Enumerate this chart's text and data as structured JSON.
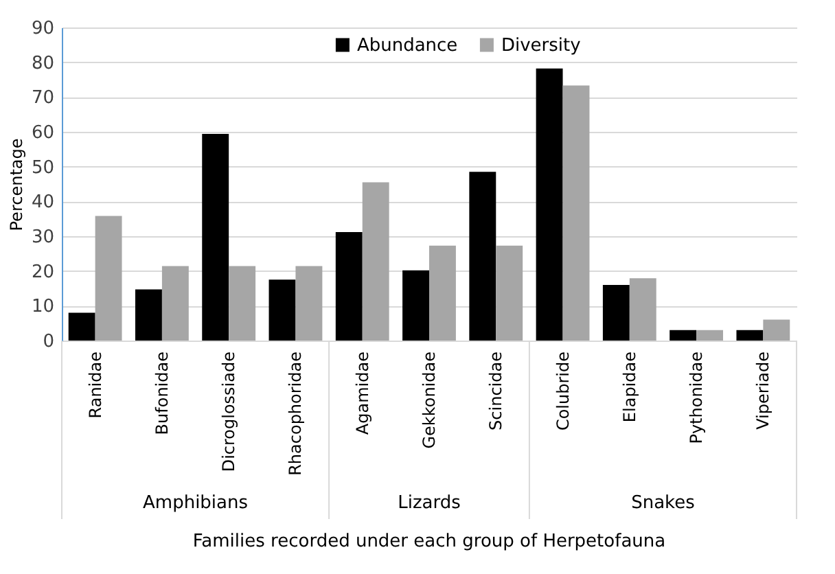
{
  "chart_data": {
    "type": "bar",
    "categories": [
      "Ranidae",
      "Bufonidae",
      "Dicroglossiade",
      "Rhacophoridae",
      "Agamidae",
      "Gekkonidae",
      "Scincidae",
      "Colubride",
      "Elapidae",
      "Pythonidae",
      "Viperiade"
    ],
    "series": [
      {
        "name": "Abundance",
        "color": "#000000",
        "values": [
          8,
          14.7,
          59.4,
          17.5,
          31.2,
          20.2,
          48.5,
          78.2,
          16,
          3,
          3
        ]
      },
      {
        "name": "Diversity",
        "color": "#a6a6a6",
        "values": [
          35.8,
          21.4,
          21.4,
          21.4,
          45.5,
          27.3,
          27.3,
          73.3,
          17.9,
          3,
          6
        ]
      }
    ],
    "xlabel": "Families recorded under each group of Herpetofauna",
    "ylabel": "Percentage",
    "annotations": [
      "Amphibians",
      "Lizards",
      "Snakes"
    ],
    "ylim": [
      0,
      90
    ],
    "yticks": [
      0,
      10,
      20,
      30,
      40,
      50,
      60,
      70,
      80,
      90
    ],
    "grid": "y",
    "legend": "top"
  }
}
